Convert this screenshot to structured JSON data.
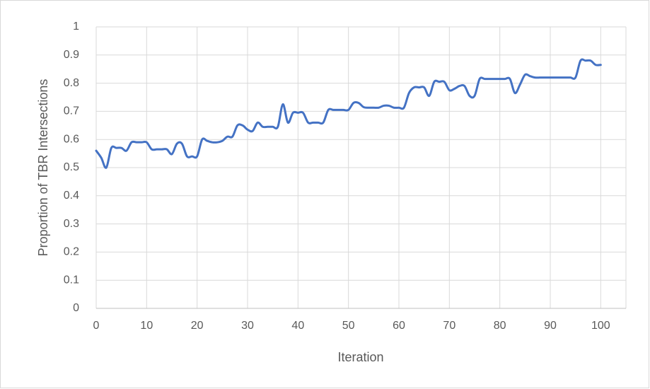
{
  "chart_data": {
    "type": "line",
    "x_label": "Iteration",
    "y_label": "Proportion of TBR Intersections",
    "x": [
      0,
      1,
      2,
      3,
      4,
      5,
      6,
      7,
      8,
      9,
      10,
      11,
      12,
      13,
      14,
      15,
      16,
      17,
      18,
      19,
      20,
      21,
      22,
      23,
      24,
      25,
      26,
      27,
      28,
      29,
      30,
      31,
      32,
      33,
      34,
      35,
      36,
      37,
      38,
      39,
      40,
      41,
      42,
      43,
      44,
      45,
      46,
      47,
      48,
      49,
      50,
      51,
      52,
      53,
      54,
      55,
      56,
      57,
      58,
      59,
      60,
      61,
      62,
      63,
      64,
      65,
      66,
      67,
      68,
      69,
      70,
      71,
      72,
      73,
      74,
      75,
      76,
      77,
      78,
      79,
      80,
      81,
      82,
      83,
      84,
      85,
      86,
      87,
      88,
      89,
      90,
      91,
      92,
      93,
      94,
      95,
      96,
      97,
      98,
      99,
      100
    ],
    "series": [
      {
        "name": "Proportion",
        "color": "#4472c4",
        "values": [
          0.56,
          0.535,
          0.5,
          0.57,
          0.57,
          0.57,
          0.56,
          0.59,
          0.59,
          0.59,
          0.59,
          0.565,
          0.565,
          0.565,
          0.565,
          0.548,
          0.585,
          0.585,
          0.54,
          0.54,
          0.54,
          0.6,
          0.595,
          0.59,
          0.59,
          0.595,
          0.61,
          0.61,
          0.65,
          0.65,
          0.635,
          0.63,
          0.66,
          0.645,
          0.645,
          0.645,
          0.645,
          0.725,
          0.66,
          0.695,
          0.695,
          0.695,
          0.66,
          0.66,
          0.66,
          0.66,
          0.705,
          0.705,
          0.705,
          0.705,
          0.705,
          0.73,
          0.73,
          0.715,
          0.713,
          0.713,
          0.713,
          0.72,
          0.72,
          0.713,
          0.713,
          0.713,
          0.765,
          0.785,
          0.785,
          0.785,
          0.755,
          0.805,
          0.805,
          0.805,
          0.775,
          0.78,
          0.79,
          0.79,
          0.755,
          0.755,
          0.815,
          0.815,
          0.815,
          0.815,
          0.815,
          0.815,
          0.815,
          0.765,
          0.795,
          0.83,
          0.825,
          0.82,
          0.82,
          0.82,
          0.82,
          0.82,
          0.82,
          0.82,
          0.82,
          0.82,
          0.88,
          0.88,
          0.88,
          0.865,
          0.865
        ]
      }
    ],
    "xlim": [
      0,
      105
    ],
    "xticks": [
      0,
      10,
      20,
      30,
      40,
      50,
      60,
      70,
      80,
      90,
      100
    ],
    "ylim": [
      0,
      1
    ],
    "yticks": [
      0,
      0.1,
      0.2,
      0.3,
      0.4,
      0.5,
      0.6,
      0.7,
      0.8,
      0.9,
      1
    ],
    "grid": true
  }
}
